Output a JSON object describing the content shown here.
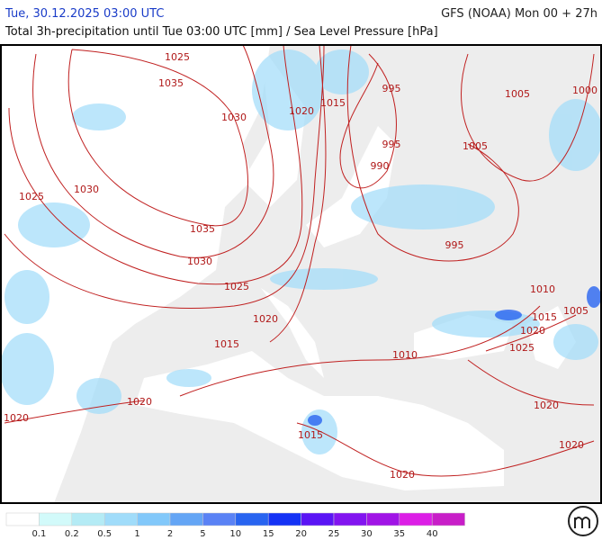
{
  "header": {
    "title": "Tue, 30.12.2025 03:00 UTC",
    "model": "GFS (NOAA) Mon 00 + 27h",
    "subtitle": "Total 3h-precipitation until Tue 03:00 UTC [mm] / Sea Level Pressure [hPa]"
  },
  "map": {
    "isobar_labels": [
      "1025",
      "1035",
      "1030",
      "1020",
      "1015",
      "995",
      "1005",
      "1000",
      "995",
      "1005",
      "990",
      "1025",
      "1030",
      "1035",
      "995",
      "1030",
      "1025",
      "1010",
      "1020",
      "1015",
      "1005",
      "1020",
      "1015",
      "1025",
      "1010",
      "1020",
      "1020",
      "1020",
      "1015",
      "1020",
      "1020"
    ]
  },
  "legend": {
    "colors": [
      "#ffffff",
      "#d2fafa",
      "#b4ebf5",
      "#a0dcfa",
      "#82c8fa",
      "#64a5f5",
      "#5a82f5",
      "#2864f0",
      "#1432f5",
      "#5a14f5",
      "#8214f0",
      "#a014e6",
      "#dc1ee6",
      "#c81ec8"
    ],
    "labels": [
      "0.1",
      "0.2",
      "0.5",
      "1",
      "2",
      "5",
      "10",
      "15",
      "20",
      "25",
      "30",
      "35",
      "40"
    ]
  }
}
